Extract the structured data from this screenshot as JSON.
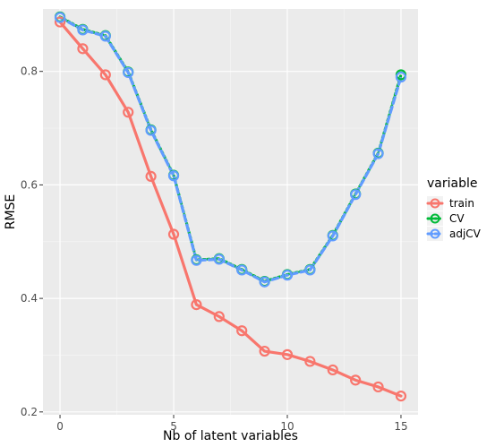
{
  "chart_data": {
    "type": "line",
    "title": "",
    "xlabel": "Nb of latent variables",
    "ylabel": "RMSE",
    "x": [
      0,
      1,
      2,
      3,
      4,
      5,
      6,
      7,
      8,
      9,
      10,
      11,
      12,
      13,
      14,
      15
    ],
    "xlim": [
      -0.75,
      15.75
    ],
    "ylim": [
      0.195,
      0.91
    ],
    "x_ticks": [
      0,
      5,
      10,
      15
    ],
    "y_ticks": [
      0.2,
      0.4,
      0.6,
      0.8
    ],
    "x_tick_labels": [
      "0",
      "5",
      "10",
      "15"
    ],
    "y_tick_labels": [
      "0.2",
      "0.4",
      "0.6",
      "0.8"
    ],
    "grid": true,
    "legend": {
      "title": "variable",
      "position": "right"
    },
    "series": [
      {
        "name": "train",
        "color": "#F8766D",
        "style": "solid",
        "values": [
          0.887,
          0.84,
          0.794,
          0.728,
          0.615,
          0.513,
          0.389,
          0.368,
          0.343,
          0.307,
          0.301,
          0.289,
          0.274,
          0.256,
          0.244,
          0.228
        ]
      },
      {
        "name": "CV",
        "color": "#00BA38",
        "style": "dotted",
        "values": [
          0.896,
          0.874,
          0.863,
          0.799,
          0.697,
          0.617,
          0.468,
          0.47,
          0.451,
          0.43,
          0.442,
          0.451,
          0.511,
          0.584,
          0.656,
          0.794
        ]
      },
      {
        "name": "adjCV",
        "color": "#619CFF",
        "style": "dashed",
        "values": [
          0.895,
          0.873,
          0.862,
          0.798,
          0.696,
          0.616,
          0.467,
          0.469,
          0.45,
          0.429,
          0.441,
          0.45,
          0.51,
          0.583,
          0.655,
          0.79
        ]
      }
    ]
  }
}
